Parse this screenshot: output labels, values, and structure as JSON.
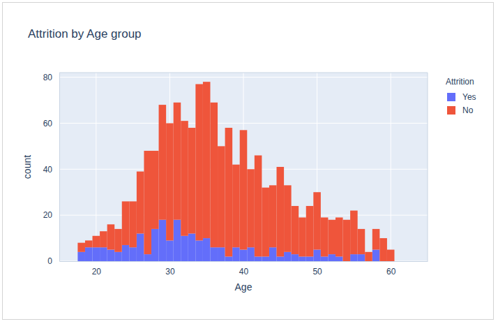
{
  "chart_data": {
    "type": "histogram",
    "title": "Attrition by Age group",
    "x_label": "Age",
    "y_label": "count",
    "legend_title": "Attrition",
    "bins": [
      17.5,
      18.5,
      19.5,
      20.5,
      21.5,
      22.5,
      23.5,
      24.5,
      25.5,
      26.5,
      27.5,
      28.5,
      29.5,
      30.5,
      31.5,
      32.5,
      33.5,
      34.5,
      35.5,
      36.5,
      37.5,
      38.5,
      39.5,
      40.5,
      41.5,
      42.5,
      43.5,
      44.5,
      45.5,
      46.5,
      47.5,
      48.5,
      49.5,
      50.5,
      51.5,
      52.5,
      53.5,
      54.5,
      55.5,
      56.5,
      57.5,
      58.5,
      59.5,
      60.5
    ],
    "series": [
      {
        "name": "Yes",
        "color": "#636efa",
        "values": [
          4,
          6,
          6,
          6,
          5,
          4,
          7,
          6,
          12,
          3,
          14,
          18,
          9,
          18,
          11,
          12,
          9,
          10,
          6,
          6,
          2,
          6,
          5,
          6,
          2,
          2,
          6,
          2,
          4,
          3,
          2,
          2,
          5,
          2,
          3,
          2,
          0,
          3,
          3,
          0,
          5,
          0,
          0
        ]
      },
      {
        "name": "No",
        "color": "#ef553b",
        "values": [
          4,
          3,
          5,
          7,
          11,
          10,
          19,
          20,
          27,
          45,
          34,
          50,
          51,
          51,
          50,
          46,
          68,
          68,
          63,
          44,
          56,
          36,
          52,
          34,
          44,
          30,
          27,
          39,
          29,
          21,
          17,
          22,
          25,
          17,
          15,
          17,
          18,
          19,
          11,
          4,
          9,
          10,
          5
        ]
      }
    ],
    "stacked": true,
    "xlim": [
      15,
      65
    ],
    "xticks": [
      20,
      30,
      40,
      50,
      60
    ],
    "ylim": [
      0,
      82
    ],
    "yticks": [
      0,
      20,
      40,
      60,
      80
    ],
    "grid": true,
    "legend": "right"
  }
}
